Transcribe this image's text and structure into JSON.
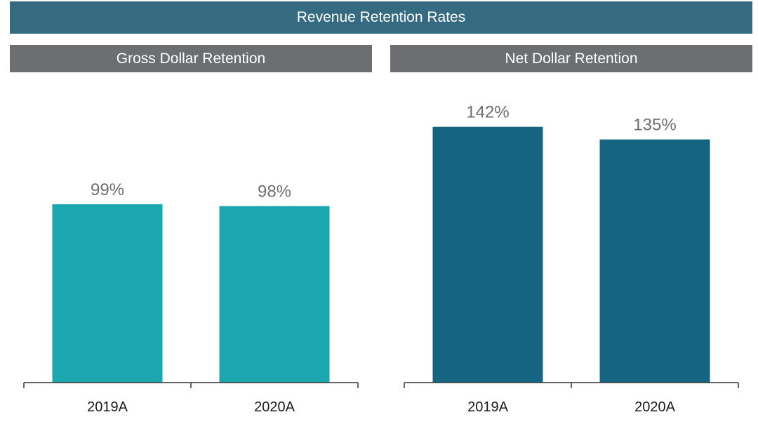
{
  "title": "Revenue Retention Rates",
  "colors": {
    "banner": "#356a80",
    "panel_header": "#6d6e71",
    "gross_bar": "#1ba6b0",
    "net_bar": "#156482"
  },
  "chart_data": [
    {
      "type": "bar",
      "title": "Gross Dollar Retention",
      "categories": [
        "2019A",
        "2020A"
      ],
      "values": [
        99,
        98
      ],
      "value_labels": [
        "99%",
        "98%"
      ],
      "ylim": [
        0,
        175
      ],
      "grid": false,
      "legend": "none"
    },
    {
      "type": "bar",
      "title": "Net Dollar Retention",
      "categories": [
        "2019A",
        "2020A"
      ],
      "values": [
        142,
        135
      ],
      "value_labels": [
        "142%",
        "135%"
      ],
      "ylim": [
        0,
        175
      ],
      "grid": false,
      "legend": "none"
    }
  ]
}
